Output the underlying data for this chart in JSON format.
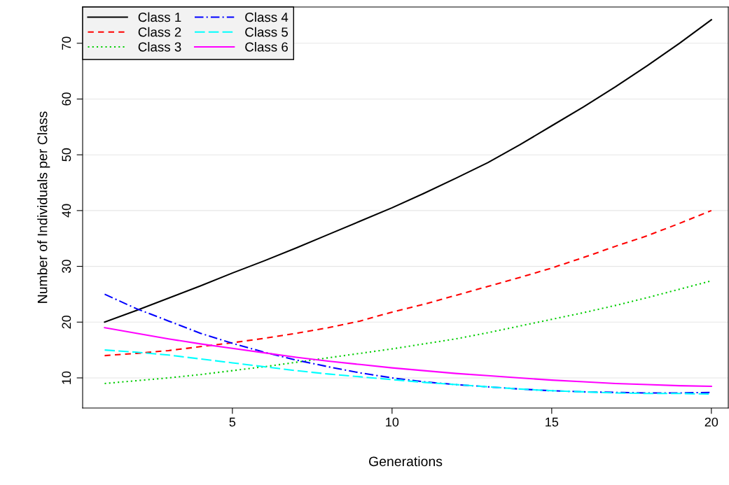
{
  "chart_data": {
    "type": "line",
    "xlabel": "Generations",
    "ylabel": "Number of Individuals per Class",
    "x": [
      1,
      2,
      3,
      4,
      5,
      6,
      7,
      8,
      9,
      10,
      11,
      12,
      13,
      14,
      15,
      16,
      17,
      18,
      19,
      20
    ],
    "series": [
      {
        "name": "Class 1",
        "color": "#000000",
        "line_style": "solid",
        "values": [
          20,
          22.1,
          24.3,
          26.5,
          28.8,
          31.0,
          33.3,
          35.7,
          38.1,
          40.5,
          43.1,
          45.8,
          48.6,
          51.8,
          55.2,
          58.6,
          62.2,
          66.0,
          70.0,
          74.2
        ]
      },
      {
        "name": "Class 2",
        "color": "#ff0000",
        "line_style": "dashed",
        "values": [
          14,
          14.4,
          14.9,
          15.6,
          16.3,
          17.1,
          18.0,
          19.0,
          20.2,
          21.8,
          23.2,
          24.8,
          26.4,
          28.0,
          29.7,
          31.6,
          33.6,
          35.5,
          37.7,
          40.0
        ]
      },
      {
        "name": "Class 3",
        "color": "#00cd00",
        "line_style": "dotted",
        "values": [
          9,
          9.5,
          10.0,
          10.6,
          11.3,
          12.0,
          12.8,
          13.6,
          14.4,
          15.2,
          16.1,
          17.0,
          18.1,
          19.3,
          20.5,
          21.7,
          23.0,
          24.4,
          25.9,
          27.4
        ]
      },
      {
        "name": "Class 4",
        "color": "#0000ff",
        "line_style": "dashdot",
        "values": [
          25,
          22.4,
          20.2,
          18.0,
          16.2,
          14.6,
          13.2,
          12.0,
          10.9,
          10.0,
          9.3,
          8.8,
          8.4,
          8.0,
          7.7,
          7.5,
          7.4,
          7.3,
          7.3,
          7.4
        ]
      },
      {
        "name": "Class 5",
        "color": "#00ffff",
        "line_style": "longdash",
        "values": [
          15,
          14.6,
          14.1,
          13.4,
          12.7,
          12.0,
          11.3,
          10.7,
          10.2,
          9.7,
          9.2,
          8.8,
          8.4,
          8.0,
          7.7,
          7.5,
          7.3,
          7.2,
          7.2,
          7.1
        ]
      },
      {
        "name": "Class 6",
        "color": "#ff00ff",
        "line_style": "solid",
        "values": [
          19,
          18.0,
          17.0,
          16.1,
          15.3,
          14.5,
          13.7,
          13.0,
          12.4,
          11.8,
          11.3,
          10.8,
          10.4,
          10.0,
          9.6,
          9.3,
          9.0,
          8.8,
          8.6,
          8.5
        ]
      }
    ],
    "xlim": [
      0.31,
      20.53
    ],
    "ylim": [
      4.6,
      76.5
    ],
    "xticks": [
      5,
      10,
      15,
      20
    ],
    "yticks": [
      10,
      20,
      30,
      40,
      50,
      60,
      70
    ],
    "grid": "y",
    "legend": "top left",
    "marker": "none"
  }
}
